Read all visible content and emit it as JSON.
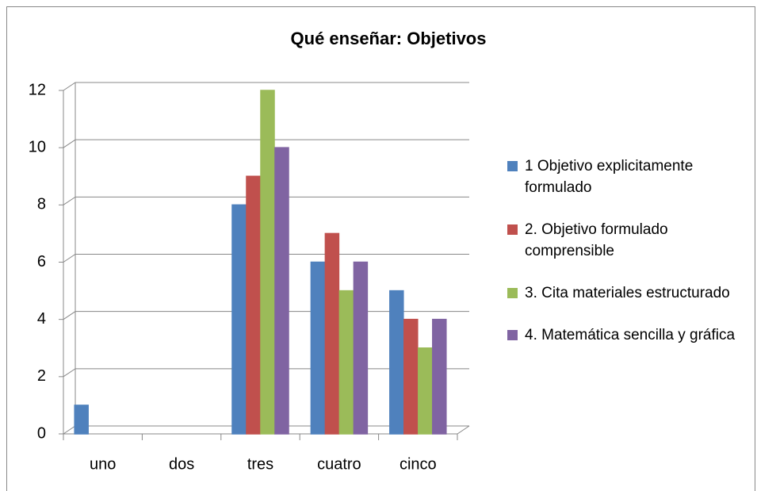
{
  "chart_data": {
    "type": "bar",
    "title": "Qué enseñar: Objetivos",
    "categories": [
      "uno",
      "dos",
      "tres",
      "cuatro",
      "cinco"
    ],
    "series": [
      {
        "name": "1 Objetivo explicitamente formulado",
        "color": "#4f81bd",
        "values": [
          1,
          0,
          8,
          6,
          5
        ]
      },
      {
        "name": "2. Objetivo formulado comprensible",
        "color": "#c0504d",
        "values": [
          0,
          0,
          9,
          7,
          4
        ]
      },
      {
        "name": "3. Cita materiales estructurado",
        "color": "#9bbb59",
        "values": [
          0,
          0,
          12,
          5,
          3
        ]
      },
      {
        "name": "4. Matemática sencilla y gráfica",
        "color": "#8064a2",
        "values": [
          0,
          0,
          10,
          6,
          4
        ]
      }
    ],
    "ylim": [
      0,
      12
    ],
    "yticks": [
      0,
      2,
      4,
      6,
      8,
      10,
      12
    ],
    "grid": true,
    "legend": "right"
  }
}
